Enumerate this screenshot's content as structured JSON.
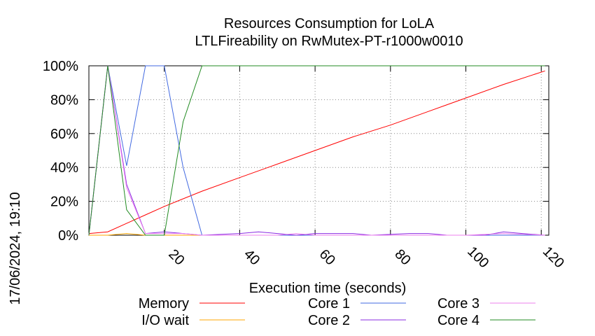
{
  "chart_data": {
    "type": "line",
    "title": "Resources Consumption for LoLA",
    "subtitle": "LTLFireability on RwMutex-PT-r1000w0010",
    "xlabel": "Execution time (seconds)",
    "ylabel": "",
    "side_label": "17/06/2024, 19:10",
    "xlim": [
      0,
      122
    ],
    "ylim": [
      0,
      100
    ],
    "x_ticks": [
      20,
      40,
      60,
      80,
      100,
      120
    ],
    "x_tick_labels": [
      "20",
      "40",
      "60",
      "80",
      "100",
      "120"
    ],
    "y_ticks": [
      0,
      20,
      40,
      60,
      80,
      100
    ],
    "y_tick_labels": [
      "0%",
      "20%",
      "40%",
      "60%",
      "80%",
      "100%"
    ],
    "grid": true,
    "legend_position": "bottom",
    "series": [
      {
        "name": "Memory",
        "color": "#ff0000",
        "points": [
          [
            0,
            1
          ],
          [
            5,
            2
          ],
          [
            10,
            7
          ],
          [
            15,
            12
          ],
          [
            20,
            17
          ],
          [
            30,
            26
          ],
          [
            40,
            34
          ],
          [
            50,
            42
          ],
          [
            60,
            50
          ],
          [
            70,
            58
          ],
          [
            80,
            65
          ],
          [
            90,
            73
          ],
          [
            100,
            81
          ],
          [
            110,
            89
          ],
          [
            121,
            97
          ]
        ]
      },
      {
        "name": "I/O wait",
        "color": "#ffa500",
        "points": [
          [
            0,
            0
          ],
          [
            5,
            0
          ],
          [
            10,
            1
          ],
          [
            15,
            0
          ],
          [
            20,
            0
          ],
          [
            30,
            0
          ],
          [
            40,
            0
          ],
          [
            60,
            0
          ],
          [
            80,
            0
          ],
          [
            100,
            0
          ],
          [
            121,
            0
          ]
        ]
      },
      {
        "name": "Core 1",
        "color": "#4169e1",
        "points": [
          [
            0,
            0
          ],
          [
            5,
            100
          ],
          [
            10,
            41
          ],
          [
            15,
            100
          ],
          [
            20,
            100
          ],
          [
            25,
            40
          ],
          [
            30,
            0
          ],
          [
            40,
            0
          ],
          [
            60,
            0
          ],
          [
            80,
            0
          ],
          [
            100,
            0
          ],
          [
            121,
            0
          ]
        ]
      },
      {
        "name": "Core 2",
        "color": "#8a2be2",
        "points": [
          [
            0,
            0
          ],
          [
            5,
            100
          ],
          [
            10,
            30
          ],
          [
            15,
            1
          ],
          [
            20,
            2
          ],
          [
            25,
            1
          ],
          [
            30,
            0
          ],
          [
            40,
            1
          ],
          [
            45,
            2
          ],
          [
            50,
            1
          ],
          [
            55,
            0
          ],
          [
            60,
            1
          ],
          [
            70,
            1
          ],
          [
            75,
            0
          ],
          [
            85,
            1
          ],
          [
            90,
            1
          ],
          [
            95,
            0
          ],
          [
            105,
            0
          ],
          [
            110,
            2
          ],
          [
            115,
            1
          ],
          [
            121,
            0
          ]
        ]
      },
      {
        "name": "Core 3",
        "color": "#ee82ee",
        "points": [
          [
            0,
            0
          ],
          [
            5,
            100
          ],
          [
            10,
            28
          ],
          [
            15,
            1
          ],
          [
            20,
            1
          ],
          [
            25,
            1
          ],
          [
            30,
            0
          ],
          [
            40,
            0
          ],
          [
            50,
            0
          ],
          [
            55,
            1
          ],
          [
            60,
            0
          ],
          [
            80,
            0
          ],
          [
            100,
            0
          ],
          [
            110,
            1
          ],
          [
            121,
            0
          ]
        ]
      },
      {
        "name": "Core 4",
        "color": "#228b22",
        "points": [
          [
            0,
            0
          ],
          [
            5,
            100
          ],
          [
            10,
            15
          ],
          [
            15,
            0
          ],
          [
            20,
            0
          ],
          [
            25,
            67
          ],
          [
            30,
            100
          ],
          [
            40,
            100
          ],
          [
            60,
            100
          ],
          [
            80,
            100
          ],
          [
            100,
            100
          ],
          [
            121,
            100
          ]
        ]
      }
    ]
  }
}
